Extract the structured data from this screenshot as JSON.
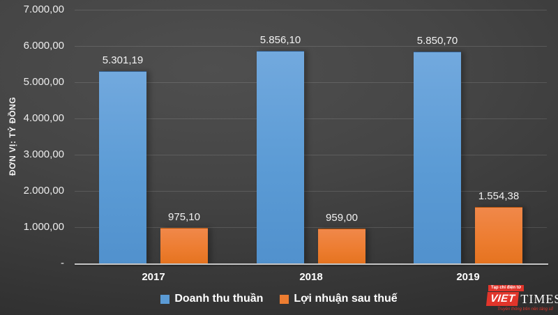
{
  "chart_data": {
    "type": "bar",
    "title": "",
    "categories": [
      "2017",
      "2018",
      "2019"
    ],
    "series": [
      {
        "name": "Doanh thu thuần",
        "color": "#5B9BD5",
        "values": [
          5301.19,
          5856.1,
          5850.7
        ],
        "value_labels": [
          "5.301,19",
          "5.856,10",
          "5.850,70"
        ]
      },
      {
        "name": "Lợi nhuận sau thuế",
        "color": "#ED7D31",
        "values": [
          975.1,
          959.0,
          1554.38
        ],
        "value_labels": [
          "975,10",
          "959,00",
          "1.554,38"
        ]
      }
    ],
    "xlabel": "",
    "ylabel": "ĐƠN VỊ: TỶ ĐỒNG",
    "ylim": [
      0,
      7000
    ],
    "ytick_values": [
      0,
      1000,
      2000,
      3000,
      4000,
      5000,
      6000,
      7000
    ],
    "ytick_labels": [
      "-",
      "1.000,00",
      "2.000,00",
      "3.000,00",
      "4.000,00",
      "5.000,00",
      "6.000,00",
      "7.000,00"
    ],
    "grid": true,
    "legend_position": "bottom"
  },
  "colors": {
    "background_center": "#4f4f4f",
    "background_edge": "#2b2b2b",
    "series_blue": "#5B9BD5",
    "series_orange": "#ED7D31",
    "axis_line": "#c6c6c6",
    "text": "#f2f2f2",
    "logo_red": "#e2352b"
  },
  "logo": {
    "tagline_top": "Tạp chí điện tử",
    "brand_first": "VIET",
    "brand_second": "TIMES",
    "tagline_bottom": "Truyền thông trên nền tảng số"
  }
}
